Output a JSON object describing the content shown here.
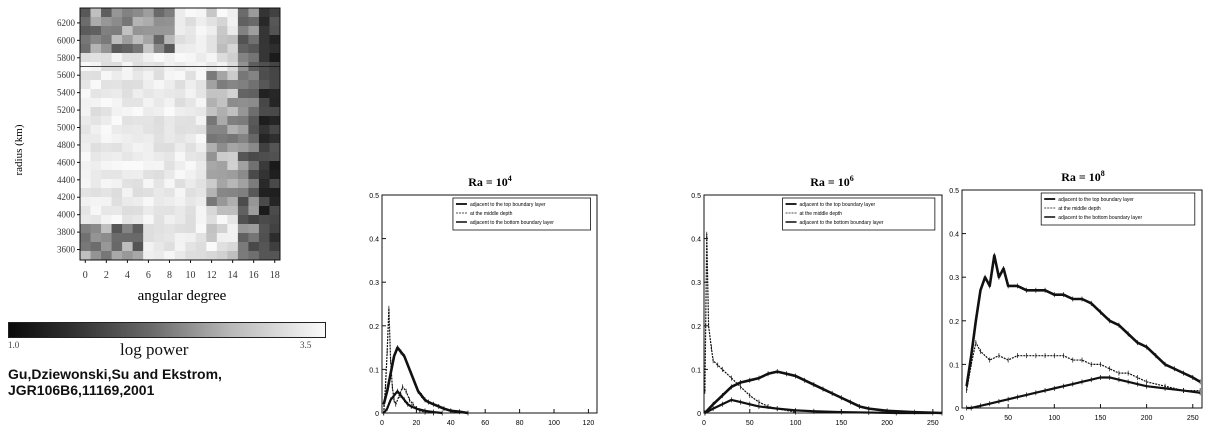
{
  "citation": {
    "line1": "Gu,Dziewonski,Su and Ekstrom,",
    "line2": "JGR106B6,11169,2001"
  },
  "colors": {
    "ink": "#111111",
    "paper": "#ffffff",
    "grid_gray": "#888888"
  },
  "chart_data": [
    {
      "type": "heatmap",
      "xlabel": "angular degree",
      "ylabel": "radius (km)",
      "x_ticks": [
        "0",
        "2",
        "4",
        "6",
        "8",
        "10",
        "12",
        "14",
        "16",
        "18"
      ],
      "y_ticks": [
        "3600",
        "3800",
        "4000",
        "4200",
        "4400",
        "4600",
        "4800",
        "5000",
        "5200",
        "5400",
        "5600",
        "5800",
        "6000",
        "6200"
      ],
      "x_range": [
        0,
        18
      ],
      "y_range": [
        3480,
        6371
      ],
      "reference_line_radius": 5700,
      "colorbar": {
        "label": "log power",
        "min_label": "1.0",
        "max_label": "3.5",
        "low_color": "#111111",
        "high_color": "#ffffff"
      }
    },
    {
      "type": "line",
      "title": "Ra = 10",
      "title_exponent": "4",
      "xlabel": "harmonic degree",
      "xlim": [
        0,
        125
      ],
      "ylim": [
        0,
        0.5
      ],
      "x_ticks": [
        "0",
        "20",
        "40",
        "60",
        "80",
        "100",
        "120"
      ],
      "y_ticks": [
        "0",
        "0.1",
        "0.2",
        "0.3",
        "0.4",
        "0.5"
      ],
      "legend": [
        "adjacent to the top boundary layer",
        "at the middle depth",
        "adjacent to the bottom boundary layer"
      ],
      "legend_position": "top-right",
      "series": [
        {
          "name": "adjacent to the top boundary layer",
          "x": [
            1,
            3,
            5,
            7,
            9,
            11,
            13,
            15,
            17,
            19,
            21,
            23,
            25,
            27,
            30,
            33,
            36,
            40,
            45,
            50
          ],
          "values": [
            0.02,
            0.05,
            0.09,
            0.13,
            0.15,
            0.14,
            0.13,
            0.11,
            0.09,
            0.07,
            0.05,
            0.04,
            0.03,
            0.025,
            0.02,
            0.015,
            0.01,
            0.005,
            0.003,
            0.0
          ]
        },
        {
          "name": "at the middle depth",
          "x": [
            1,
            2,
            3,
            4,
            5,
            6,
            7,
            8,
            10,
            12,
            14,
            16,
            18,
            20,
            22,
            25,
            30
          ],
          "values": [
            0.0,
            0.06,
            0.14,
            0.24,
            0.12,
            0.06,
            0.03,
            0.02,
            0.04,
            0.06,
            0.05,
            0.03,
            0.02,
            0.01,
            0.005,
            0.002,
            0.0
          ]
        },
        {
          "name": "adjacent to the bottom boundary layer",
          "x": [
            1,
            3,
            5,
            7,
            9,
            11,
            13,
            15,
            17,
            20,
            25,
            30,
            35
          ],
          "values": [
            0.0,
            0.01,
            0.03,
            0.04,
            0.05,
            0.04,
            0.03,
            0.02,
            0.015,
            0.01,
            0.005,
            0.002,
            0.0
          ]
        }
      ]
    },
    {
      "type": "line",
      "title": "Ra = 10",
      "title_exponent": "6",
      "xlabel": "harmonic degree",
      "xlim": [
        0,
        260
      ],
      "ylim": [
        0,
        0.5
      ],
      "x_ticks": [
        "0",
        "50",
        "100",
        "150",
        "200",
        "250"
      ],
      "y_ticks": [
        "0",
        "0.1",
        "0.2",
        "0.3",
        "0.4",
        "0.5"
      ],
      "legend": [
        "adjacent to the top boundary layer",
        "at the middle depth",
        "adjacent to the bottom boundary layer"
      ],
      "legend_position": "top-right",
      "series": [
        {
          "name": "adjacent to the top boundary layer",
          "x": [
            1,
            10,
            20,
            30,
            40,
            50,
            60,
            70,
            80,
            90,
            100,
            110,
            120,
            130,
            140,
            150,
            160,
            170,
            180,
            200,
            230,
            260
          ],
          "values": [
            0.0,
            0.02,
            0.04,
            0.06,
            0.07,
            0.075,
            0.08,
            0.09,
            0.095,
            0.09,
            0.085,
            0.075,
            0.065,
            0.055,
            0.045,
            0.035,
            0.025,
            0.015,
            0.01,
            0.005,
            0.002,
            0.0
          ]
        },
        {
          "name": "at the middle depth",
          "x": [
            1,
            3,
            5,
            8,
            10,
            15,
            20,
            30,
            40,
            50,
            60,
            70,
            80,
            100
          ],
          "values": [
            0.05,
            0.41,
            0.2,
            0.15,
            0.12,
            0.11,
            0.1,
            0.08,
            0.06,
            0.04,
            0.025,
            0.015,
            0.01,
            0.002
          ]
        },
        {
          "name": "adjacent to the bottom boundary layer",
          "x": [
            1,
            10,
            20,
            30,
            40,
            50,
            60,
            80,
            100,
            120,
            150,
            180,
            210,
            250
          ],
          "values": [
            0.0,
            0.01,
            0.02,
            0.03,
            0.025,
            0.02,
            0.015,
            0.01,
            0.006,
            0.004,
            0.002,
            0.001,
            0.0,
            0.0
          ]
        }
      ]
    },
    {
      "type": "line",
      "title": "Ra = 10",
      "title_exponent": "8",
      "xlabel": "harmonic degree",
      "xlim": [
        0,
        260
      ],
      "ylim": [
        0,
        0.5
      ],
      "x_ticks": [
        "0",
        "50",
        "100",
        "150",
        "200",
        "250"
      ],
      "y_ticks": [
        "0",
        "0.1",
        "0.2",
        "0.3",
        "0.4",
        "0.5"
      ],
      "legend": [
        "adjacent to the top boundary layer",
        "at the middle depth",
        "adjacent to the bottom boundary layer"
      ],
      "legend_position": "top-right",
      "series": [
        {
          "name": "adjacent to the top boundary layer",
          "x": [
            5,
            10,
            15,
            20,
            25,
            30,
            35,
            40,
            45,
            50,
            60,
            70,
            80,
            90,
            100,
            110,
            120,
            130,
            140,
            150,
            160,
            170,
            180,
            190,
            200,
            210,
            220,
            230,
            240,
            250,
            258
          ],
          "values": [
            0.05,
            0.12,
            0.2,
            0.27,
            0.3,
            0.28,
            0.35,
            0.3,
            0.32,
            0.28,
            0.28,
            0.27,
            0.27,
            0.27,
            0.26,
            0.26,
            0.25,
            0.25,
            0.24,
            0.22,
            0.2,
            0.19,
            0.17,
            0.15,
            0.14,
            0.12,
            0.1,
            0.09,
            0.08,
            0.07,
            0.06
          ]
        },
        {
          "name": "at the middle depth",
          "x": [
            5,
            10,
            15,
            20,
            30,
            40,
            50,
            60,
            70,
            80,
            90,
            100,
            110,
            120,
            130,
            140,
            150,
            160,
            170,
            180,
            190,
            200,
            220,
            240,
            258
          ],
          "values": [
            0.04,
            0.1,
            0.15,
            0.13,
            0.11,
            0.12,
            0.11,
            0.12,
            0.12,
            0.12,
            0.12,
            0.12,
            0.12,
            0.11,
            0.11,
            0.1,
            0.1,
            0.09,
            0.08,
            0.08,
            0.07,
            0.06,
            0.05,
            0.04,
            0.04
          ]
        },
        {
          "name": "adjacent to the bottom boundary layer",
          "x": [
            5,
            10,
            20,
            30,
            40,
            50,
            60,
            70,
            80,
            90,
            100,
            110,
            120,
            130,
            140,
            150,
            160,
            170,
            180,
            190,
            200,
            220,
            240,
            258
          ],
          "values": [
            0.0,
            0.0,
            0.005,
            0.01,
            0.015,
            0.02,
            0.025,
            0.03,
            0.035,
            0.04,
            0.045,
            0.05,
            0.055,
            0.06,
            0.065,
            0.07,
            0.07,
            0.065,
            0.06,
            0.055,
            0.05,
            0.045,
            0.04,
            0.035
          ]
        }
      ]
    }
  ]
}
